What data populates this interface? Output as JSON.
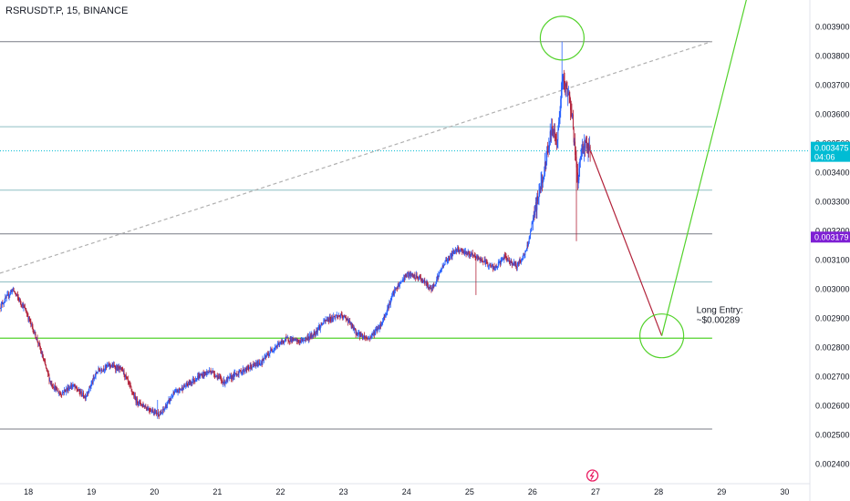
{
  "header": {
    "symbol_line": "RSRUSDT.P, 15, BINANCE"
  },
  "colors": {
    "up": "#2962ff",
    "down": "#b2223a",
    "green": "#53d22b",
    "last_price_bg": "#00bcd4",
    "marker_bg": "#7e1fd4",
    "event_icon": "#e91e63"
  },
  "chart_data": {
    "type": "candlestick",
    "x_tick_labels": [
      "18",
      "19",
      "20",
      "21",
      "22",
      "23",
      "24",
      "25",
      "26",
      "27",
      "28",
      "29",
      "30"
    ],
    "x_ticks": [
      18,
      19,
      20,
      21,
      22,
      23,
      24,
      25,
      26,
      27,
      28,
      29,
      30
    ],
    "xlim": [
      17.55,
      30.4
    ],
    "ylim": [
      0.002348,
      0.003993
    ],
    "y_tick_labels": [
      "0.003900",
      "0.003800",
      "0.003700",
      "0.003600",
      "0.003500",
      "0.003400",
      "0.003300",
      "0.003200",
      "0.003100",
      "0.003000",
      "0.002900",
      "0.002800",
      "0.002700",
      "0.002600",
      "0.002500",
      "0.002400"
    ],
    "y_ticks": [
      0.0039,
      0.0038,
      0.0037,
      0.0036,
      0.0035,
      0.0034,
      0.0033,
      0.0032,
      0.0031,
      0.003,
      0.0029,
      0.0028,
      0.0027,
      0.0026,
      0.0025,
      0.0024
    ],
    "price_path": [
      [
        17.55,
        0.00294
      ],
      [
        17.75,
        0.003
      ],
      [
        17.95,
        0.00293
      ],
      [
        18.15,
        0.00282
      ],
      [
        18.35,
        0.00268
      ],
      [
        18.5,
        0.00264
      ],
      [
        18.7,
        0.00267
      ],
      [
        18.9,
        0.00263
      ],
      [
        19.1,
        0.00272
      ],
      [
        19.3,
        0.00274
      ],
      [
        19.5,
        0.00272
      ],
      [
        19.7,
        0.00262
      ],
      [
        19.9,
        0.00259
      ],
      [
        20.1,
        0.00257
      ],
      [
        20.3,
        0.00264
      ],
      [
        20.5,
        0.00267
      ],
      [
        20.7,
        0.0027
      ],
      [
        20.9,
        0.00272
      ],
      [
        21.1,
        0.00268
      ],
      [
        21.3,
        0.00271
      ],
      [
        21.5,
        0.00273
      ],
      [
        21.7,
        0.00275
      ],
      [
        21.9,
        0.0028
      ],
      [
        22.1,
        0.00283
      ],
      [
        22.3,
        0.00282
      ],
      [
        22.5,
        0.00284
      ],
      [
        22.7,
        0.00289
      ],
      [
        22.9,
        0.00291
      ],
      [
        23.05,
        0.0029
      ],
      [
        23.2,
        0.00285
      ],
      [
        23.4,
        0.00283
      ],
      [
        23.6,
        0.00288
      ],
      [
        23.8,
        0.00299
      ],
      [
        24.0,
        0.00305
      ],
      [
        24.2,
        0.00304
      ],
      [
        24.4,
        0.003
      ],
      [
        24.6,
        0.00309
      ],
      [
        24.8,
        0.00314
      ],
      [
        25.0,
        0.00312
      ],
      [
        25.2,
        0.0031
      ],
      [
        25.4,
        0.00307
      ],
      [
        25.55,
        0.00311
      ],
      [
        25.75,
        0.00308
      ],
      [
        25.9,
        0.00313
      ],
      [
        26.05,
        0.00328
      ],
      [
        26.2,
        0.00342
      ],
      [
        26.3,
        0.00355
      ],
      [
        26.4,
        0.00352
      ],
      [
        26.47,
        0.00372
      ],
      [
        26.55,
        0.00368
      ],
      [
        26.62,
        0.00362
      ],
      [
        26.68,
        0.00345
      ],
      [
        26.72,
        0.00338
      ],
      [
        26.78,
        0.00348
      ],
      [
        26.85,
        0.0035
      ],
      [
        26.9,
        0.003475
      ]
    ],
    "wick_extremes": [
      {
        "x": 26.47,
        "low": 0.00366,
        "high": 0.00385
      },
      {
        "x": 26.7,
        "low": 0.003165,
        "high": 0.00345
      },
      {
        "x": 25.1,
        "low": 0.00298,
        "high": 0.00311
      },
      {
        "x": 20.05,
        "low": 0.002555,
        "high": 0.00262
      }
    ],
    "horizontal_levels": [
      {
        "price": 0.00385,
        "color": "#787b86"
      },
      {
        "price": 0.003558,
        "color": "#8fbfc4"
      },
      {
        "price": 0.003475,
        "color": "#00bcd4",
        "dotted": true
      },
      {
        "price": 0.00334,
        "color": "#8fbfc4"
      },
      {
        "price": 0.00319,
        "color": "#787b86"
      },
      {
        "price": 0.003025,
        "color": "#8fbfc4"
      },
      {
        "price": 0.002832,
        "color": "#53d22b"
      },
      {
        "price": 0.00252,
        "color": "#787b86"
      }
    ],
    "trend_lines": [
      {
        "from": [
          17.55,
          0.003055
        ],
        "to": [
          28.85,
          0.003851
        ],
        "color": "#b0b0b0",
        "dashed": true
      },
      {
        "from": [
          26.92,
          0.003475
        ],
        "to": [
          28.05,
          0.00284
        ],
        "color": "#b2223a"
      },
      {
        "from": [
          28.05,
          0.00284
        ],
        "to": [
          29.4,
          0.004
        ],
        "color": "#53d22b"
      }
    ],
    "circles": [
      {
        "cx": 26.47,
        "cy": 0.003862,
        "color": "#53d22b"
      },
      {
        "cx": 28.05,
        "cy": 0.00284,
        "color": "#53d22b"
      }
    ],
    "annotation": {
      "line1": "Long Entry:",
      "line2": "~$0.00289",
      "x": 28.6,
      "y": 0.00291
    },
    "last_price": {
      "value": 0.003475,
      "label": "0.003475",
      "countdown": "04:06"
    },
    "marked_price": {
      "value": 0.003179,
      "label": "0.003179"
    },
    "event_marker_x": 26.95
  }
}
